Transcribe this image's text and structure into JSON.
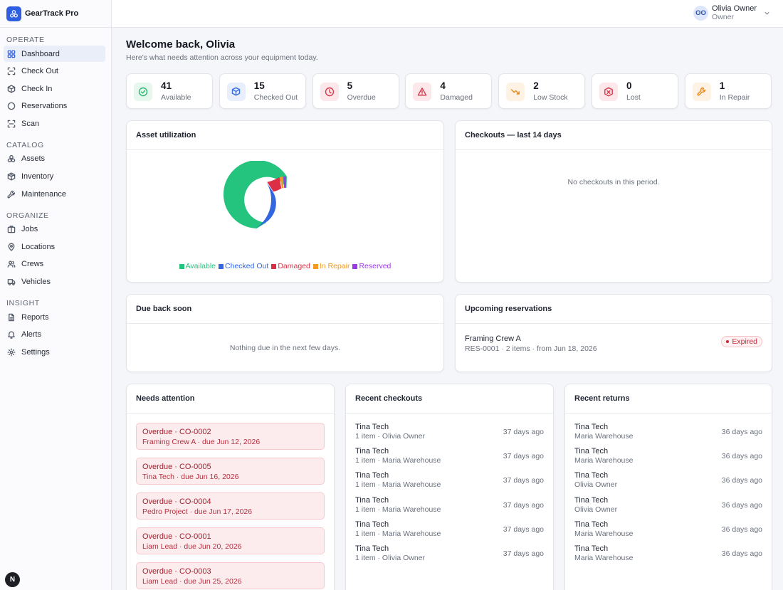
{
  "app": {
    "name": "GearTrack Pro"
  },
  "sidebar": {
    "sections": [
      {
        "title": "OPERATE",
        "items": [
          {
            "label": "Dashboard",
            "icon": "grid-icon",
            "active": true
          },
          {
            "label": "Check Out",
            "icon": "scan-out-icon"
          },
          {
            "label": "Check In",
            "icon": "box-icon"
          },
          {
            "label": "Reservations",
            "icon": "circle-icon"
          },
          {
            "label": "Scan",
            "icon": "scan-icon"
          }
        ]
      },
      {
        "title": "CATALOG",
        "items": [
          {
            "label": "Assets",
            "icon": "assets-icon"
          },
          {
            "label": "Inventory",
            "icon": "package-icon"
          },
          {
            "label": "Maintenance",
            "icon": "wrench-icon"
          }
        ]
      },
      {
        "title": "ORGANIZE",
        "items": [
          {
            "label": "Jobs",
            "icon": "briefcase-icon"
          },
          {
            "label": "Locations",
            "icon": "map-pin-icon"
          },
          {
            "label": "Crews",
            "icon": "users-icon"
          },
          {
            "label": "Vehicles",
            "icon": "truck-icon"
          }
        ]
      },
      {
        "title": "INSIGHT",
        "items": [
          {
            "label": "Reports",
            "icon": "file-icon"
          },
          {
            "label": "Alerts",
            "icon": "bell-icon"
          },
          {
            "label": "Settings",
            "icon": "gear-icon"
          }
        ]
      }
    ],
    "badge": "N"
  },
  "user": {
    "initials": "OO",
    "name": "Olivia Owner",
    "role": "Owner"
  },
  "header": {
    "welcome": "Welcome back, Olivia",
    "subtitle": "Here's what needs attention across your equipment today."
  },
  "stats": [
    {
      "value": "41",
      "label": "Available",
      "icon": "check-circle-icon",
      "color": "#2bb673",
      "bg": "#e6f7ee"
    },
    {
      "value": "15",
      "label": "Checked Out",
      "icon": "box-icon",
      "color": "#3b6fe0",
      "bg": "#e8eefb"
    },
    {
      "value": "5",
      "label": "Overdue",
      "icon": "clock-icon",
      "color": "#d8394a",
      "bg": "#fce8ea"
    },
    {
      "value": "4",
      "label": "Damaged",
      "icon": "warning-icon",
      "color": "#d8394a",
      "bg": "#fce8ea"
    },
    {
      "value": "2",
      "label": "Low Stock",
      "icon": "trending-down-icon",
      "color": "#e58a1f",
      "bg": "#fdf2e3"
    },
    {
      "value": "0",
      "label": "Lost",
      "icon": "package-x-icon",
      "color": "#d8394a",
      "bg": "#fce8ea"
    },
    {
      "value": "1",
      "label": "In Repair",
      "icon": "wrench-icon",
      "color": "#e58a1f",
      "bg": "#fdf2e3"
    }
  ],
  "utilization": {
    "title": "Asset utilization",
    "segments": [
      {
        "label": "Available",
        "value": 41,
        "color": "#24c47e"
      },
      {
        "label": "Checked Out",
        "value": 15,
        "color": "#3366e0"
      },
      {
        "label": "Damaged",
        "value": 4,
        "color": "#dc2f45"
      },
      {
        "label": "In Repair",
        "value": 1,
        "color": "#f29a24"
      },
      {
        "label": "Reserved",
        "value": 1,
        "color": "#9b3be8"
      }
    ]
  },
  "checkouts_chart": {
    "title": "Checkouts — last 14 days",
    "empty": "No checkouts in this period."
  },
  "due_back": {
    "title": "Due back soon",
    "empty": "Nothing due in the next few days."
  },
  "reservations": {
    "title": "Upcoming reservations",
    "items": [
      {
        "name": "Framing Crew A",
        "meta": "RES-0001 · 2 items · from Jun 18, 2026",
        "status": "Expired"
      }
    ]
  },
  "attention": {
    "title": "Needs attention",
    "items": [
      {
        "title": "Overdue · CO-0002",
        "sub": "Framing Crew A · due Jun 12, 2026"
      },
      {
        "title": "Overdue · CO-0005",
        "sub": "Tina Tech · due Jun 16, 2026"
      },
      {
        "title": "Overdue · CO-0004",
        "sub": "Pedro Project · due Jun 17, 2026"
      },
      {
        "title": "Overdue · CO-0001",
        "sub": "Liam Lead · due Jun 20, 2026"
      },
      {
        "title": "Overdue · CO-0003",
        "sub": "Liam Lead · due Jun 25, 2026"
      }
    ]
  },
  "recent_checkouts": {
    "title": "Recent checkouts",
    "items": [
      {
        "name": "Tina Tech",
        "sub": "1 item · Olivia Owner",
        "time": "37 days ago"
      },
      {
        "name": "Tina Tech",
        "sub": "1 item · Maria Warehouse",
        "time": "37 days ago"
      },
      {
        "name": "Tina Tech",
        "sub": "1 item · Maria Warehouse",
        "time": "37 days ago"
      },
      {
        "name": "Tina Tech",
        "sub": "1 item · Maria Warehouse",
        "time": "37 days ago"
      },
      {
        "name": "Tina Tech",
        "sub": "1 item · Maria Warehouse",
        "time": "37 days ago"
      },
      {
        "name": "Tina Tech",
        "sub": "1 item · Olivia Owner",
        "time": "37 days ago"
      }
    ]
  },
  "recent_returns": {
    "title": "Recent returns",
    "items": [
      {
        "name": "Tina Tech",
        "sub": "Maria Warehouse",
        "time": "36 days ago"
      },
      {
        "name": "Tina Tech",
        "sub": "Maria Warehouse",
        "time": "36 days ago"
      },
      {
        "name": "Tina Tech",
        "sub": "Olivia Owner",
        "time": "36 days ago"
      },
      {
        "name": "Tina Tech",
        "sub": "Olivia Owner",
        "time": "36 days ago"
      },
      {
        "name": "Tina Tech",
        "sub": "Maria Warehouse",
        "time": "36 days ago"
      },
      {
        "name": "Tina Tech",
        "sub": "Maria Warehouse",
        "time": "36 days ago"
      }
    ]
  }
}
